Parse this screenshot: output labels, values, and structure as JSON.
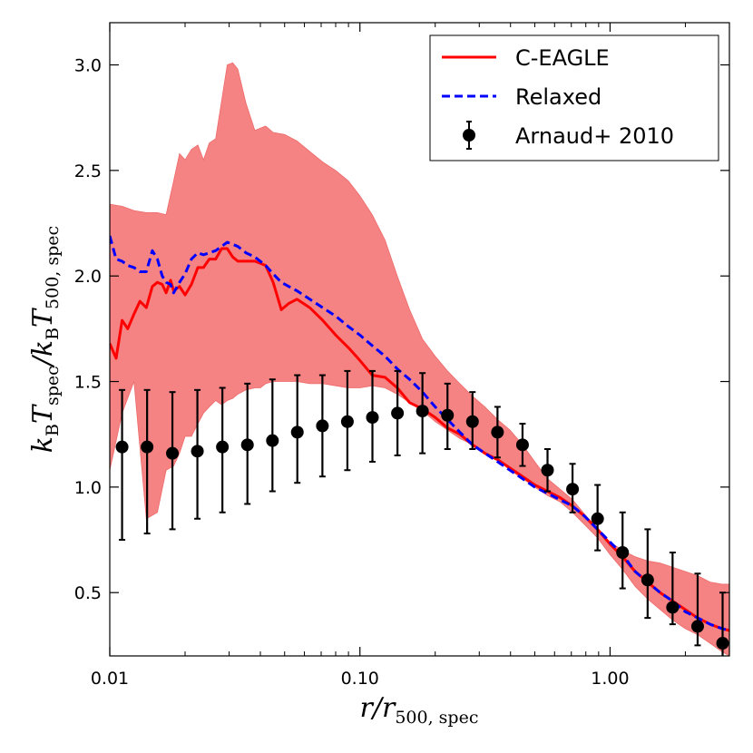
{
  "chart_data": {
    "type": "line",
    "x_scale": "log",
    "xlim": [
      0.01,
      3.0
    ],
    "ylim": [
      0.2,
      3.2
    ],
    "x_ticks": [
      0.01,
      0.1,
      1.0
    ],
    "x_tick_labels": [
      "0.01",
      "0.10",
      "1.00"
    ],
    "y_ticks": [
      0.5,
      1.0,
      1.5,
      2.0,
      2.5,
      3.0
    ],
    "y_tick_labels": [
      "0.5",
      "1.0",
      "1.5",
      "2.0",
      "2.5",
      "3.0"
    ],
    "xlabel": {
      "main": "r/r",
      "sub": "500, spec"
    },
    "ylabel": {
      "k1": "k",
      "b1": "B",
      "t1": "T",
      "s1": "spec",
      "slash": "/",
      "k2": "k",
      "b2": "B",
      "t2": "T",
      "s2": "500, spec"
    },
    "grid": false,
    "legend_position": "top-right",
    "legend": {
      "series_a": "C-EAGLE",
      "series_b": "Relaxed",
      "series_c": "Arnaud+ 2010"
    },
    "colors": {
      "cEagle": "#ff0000",
      "band": "#f47c7c",
      "relaxed": "#0000ff",
      "arnaud": "#000000"
    },
    "band": {
      "x": [
        0.01,
        0.0112,
        0.0125,
        0.014,
        0.0155,
        0.0168,
        0.018,
        0.019,
        0.02,
        0.0212,
        0.0225,
        0.0237,
        0.025,
        0.0265,
        0.028,
        0.0295,
        0.031,
        0.0325,
        0.035,
        0.038,
        0.04,
        0.042,
        0.045,
        0.05,
        0.056,
        0.063,
        0.071,
        0.08,
        0.09,
        0.1,
        0.112,
        0.126,
        0.141,
        0.158,
        0.178,
        0.2,
        0.224,
        0.251,
        0.282,
        0.316,
        0.355,
        0.398,
        0.447,
        0.5,
        0.562,
        0.631,
        0.708,
        0.794,
        0.891,
        1.0,
        1.122,
        1.259,
        1.413,
        1.585,
        1.778,
        1.995,
        2.239,
        2.512,
        2.8,
        3.0
      ],
      "upper": [
        2.34,
        2.33,
        2.31,
        2.3,
        2.3,
        2.29,
        2.45,
        2.58,
        2.55,
        2.6,
        2.62,
        2.55,
        2.63,
        2.65,
        2.83,
        3.0,
        3.01,
        2.98,
        2.82,
        2.69,
        2.7,
        2.71,
        2.68,
        2.67,
        2.64,
        2.59,
        2.54,
        2.5,
        2.45,
        2.38,
        2.29,
        2.17,
        2.0,
        1.84,
        1.7,
        1.62,
        1.55,
        1.49,
        1.43,
        1.38,
        1.32,
        1.27,
        1.2,
        1.12,
        1.04,
        0.99,
        0.94,
        0.87,
        0.8,
        0.74,
        0.7,
        0.67,
        0.65,
        0.64,
        0.62,
        0.6,
        0.58,
        0.55,
        0.54,
        0.54
      ],
      "lower": [
        1.08,
        1.35,
        1.5,
        0.85,
        0.88,
        1.08,
        1.1,
        1.16,
        1.24,
        1.24,
        1.3,
        1.35,
        1.38,
        1.41,
        1.39,
        1.41,
        1.42,
        1.44,
        1.46,
        1.47,
        1.47,
        1.49,
        1.5,
        1.5,
        1.5,
        1.49,
        1.49,
        1.48,
        1.47,
        1.47,
        1.48,
        1.47,
        1.44,
        1.4,
        1.36,
        1.31,
        1.27,
        1.23,
        1.2,
        1.16,
        1.13,
        1.08,
        1.04,
        1.0,
        0.96,
        0.93,
        0.88,
        0.82,
        0.76,
        0.68,
        0.61,
        0.53,
        0.47,
        0.42,
        0.37,
        0.33,
        0.3,
        0.26,
        0.22,
        0.2
      ]
    },
    "series": [
      {
        "name": "C-EAGLE",
        "style": "solid",
        "x": [
          0.01,
          0.0106,
          0.0112,
          0.0118,
          0.0125,
          0.0132,
          0.014,
          0.0148,
          0.0155,
          0.0162,
          0.0168,
          0.0175,
          0.018,
          0.019,
          0.02,
          0.0212,
          0.0225,
          0.0237,
          0.025,
          0.0265,
          0.028,
          0.0295,
          0.031,
          0.0325,
          0.035,
          0.038,
          0.042,
          0.045,
          0.0485,
          0.052,
          0.056,
          0.063,
          0.071,
          0.08,
          0.09,
          0.1,
          0.112,
          0.126,
          0.141,
          0.158,
          0.178,
          0.2,
          0.224,
          0.251,
          0.282,
          0.316,
          0.355,
          0.398,
          0.447,
          0.5,
          0.562,
          0.631,
          0.708,
          0.794,
          0.891,
          1.0,
          1.122,
          1.259,
          1.413,
          1.585,
          1.778,
          1.995,
          2.239,
          2.512,
          2.8,
          3.0
        ],
        "y": [
          1.68,
          1.61,
          1.79,
          1.75,
          1.82,
          1.88,
          1.85,
          1.95,
          1.97,
          1.96,
          1.92,
          1.98,
          1.93,
          1.95,
          1.91,
          1.96,
          2.04,
          2.04,
          2.08,
          2.08,
          2.13,
          2.13,
          2.09,
          2.07,
          2.07,
          2.07,
          2.05,
          1.97,
          1.84,
          1.87,
          1.89,
          1.85,
          1.79,
          1.72,
          1.66,
          1.6,
          1.53,
          1.52,
          1.47,
          1.4,
          1.37,
          1.33,
          1.28,
          1.25,
          1.2,
          1.16,
          1.13,
          1.09,
          1.05,
          1.01,
          0.98,
          0.95,
          0.91,
          0.86,
          0.8,
          0.73,
          0.67,
          0.6,
          0.55,
          0.5,
          0.46,
          0.42,
          0.38,
          0.35,
          0.33,
          0.32
        ]
      },
      {
        "name": "Relaxed",
        "style": "dashed",
        "x": [
          0.01,
          0.0106,
          0.0112,
          0.0118,
          0.0125,
          0.0132,
          0.014,
          0.0148,
          0.0155,
          0.0162,
          0.0168,
          0.0175,
          0.018,
          0.019,
          0.02,
          0.0212,
          0.0225,
          0.0237,
          0.025,
          0.0265,
          0.028,
          0.0295,
          0.031,
          0.0325,
          0.035,
          0.038,
          0.042,
          0.045,
          0.0485,
          0.052,
          0.056,
          0.063,
          0.071,
          0.08,
          0.09,
          0.1,
          0.112,
          0.126,
          0.141,
          0.158,
          0.178,
          0.2,
          0.224,
          0.251,
          0.282,
          0.316,
          0.355,
          0.398,
          0.447,
          0.5,
          0.562,
          0.631,
          0.708,
          0.794,
          0.891,
          1.0,
          1.122,
          1.259,
          1.413,
          1.585,
          1.778,
          1.995,
          2.239,
          2.512,
          2.8,
          3.0
        ],
        "y": [
          2.19,
          2.08,
          2.07,
          2.05,
          2.04,
          2.02,
          2.02,
          2.12,
          2.08,
          2.0,
          1.97,
          1.96,
          1.92,
          1.97,
          2.01,
          2.08,
          2.11,
          2.1,
          2.11,
          2.12,
          2.14,
          2.16,
          2.15,
          2.14,
          2.11,
          2.09,
          2.05,
          2.01,
          1.97,
          1.95,
          1.93,
          1.89,
          1.85,
          1.81,
          1.76,
          1.72,
          1.67,
          1.62,
          1.56,
          1.51,
          1.45,
          1.38,
          1.32,
          1.26,
          1.2,
          1.16,
          1.12,
          1.08,
          1.04,
          1.0,
          0.97,
          0.94,
          0.91,
          0.86,
          0.8,
          0.74,
          0.68,
          0.6,
          0.55,
          0.5,
          0.46,
          0.41,
          0.38,
          0.35,
          0.33,
          0.32
        ]
      }
    ],
    "errorbar_series": {
      "name": "Arnaud+ 2010",
      "x": [
        0.0112,
        0.0141,
        0.0178,
        0.0224,
        0.0282,
        0.0355,
        0.0447,
        0.0562,
        0.0708,
        0.0891,
        0.1122,
        0.1413,
        0.1778,
        0.2239,
        0.2818,
        0.3548,
        0.4467,
        0.5623,
        0.7079,
        0.8913,
        1.122,
        1.413,
        1.778,
        2.239,
        2.818
      ],
      "y": [
        1.19,
        1.19,
        1.16,
        1.17,
        1.19,
        1.2,
        1.22,
        1.26,
        1.29,
        1.31,
        1.33,
        1.35,
        1.36,
        1.34,
        1.31,
        1.26,
        1.2,
        1.08,
        0.99,
        0.85,
        0.69,
        0.56,
        0.43,
        0.34,
        0.26
      ],
      "y_low": [
        0.75,
        0.78,
        0.8,
        0.85,
        0.88,
        0.92,
        0.98,
        1.02,
        1.05,
        1.08,
        1.12,
        1.15,
        1.16,
        1.18,
        1.18,
        1.14,
        1.1,
        0.98,
        0.88,
        0.7,
        0.52,
        0.38,
        0.35,
        0.25,
        0.18
      ],
      "y_high": [
        1.46,
        1.46,
        1.45,
        1.46,
        1.47,
        1.49,
        1.51,
        1.53,
        1.53,
        1.55,
        1.55,
        1.55,
        1.54,
        1.49,
        1.45,
        1.38,
        1.3,
        1.18,
        1.11,
        1.01,
        0.88,
        0.8,
        0.69,
        0.59,
        0.5
      ]
    }
  }
}
